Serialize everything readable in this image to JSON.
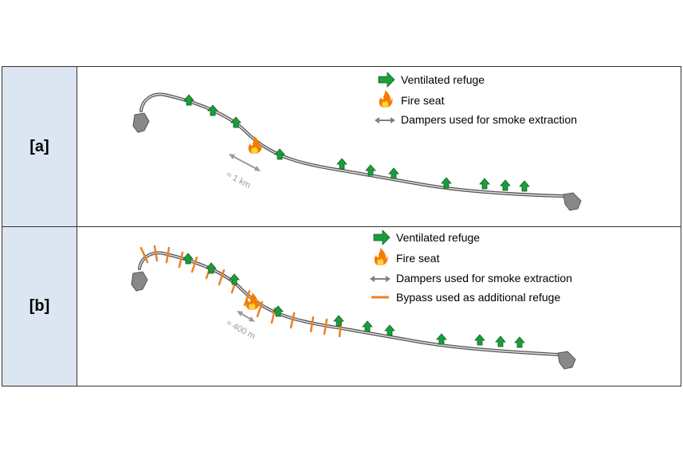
{
  "panel_a": {
    "label": "[a]",
    "distance_label": "≈ 1 km",
    "legend": {
      "refuge": "Ventilated refuge",
      "fire": "Fire seat",
      "dampers": "Dampers used for smoke extraction"
    }
  },
  "panel_b": {
    "label": "[b]",
    "distance_label": "≈ 400 m",
    "legend": {
      "refuge": "Ventilated refuge",
      "fire": "Fire seat",
      "dampers": "Dampers used for smoke extraction",
      "bypass": "Bypass used as additional refuge"
    }
  },
  "colors": {
    "label_bg": "#dce6f2",
    "refuge_arrow": "#1a9e3c",
    "bypass": "#f07f1e",
    "damper_arrow": "#808080",
    "tunnel": "#555555"
  },
  "icons": {
    "refuge": "green-arrow-icon",
    "fire": "flame-icon",
    "dampers": "double-arrow-icon",
    "bypass": "orange-line-icon"
  }
}
